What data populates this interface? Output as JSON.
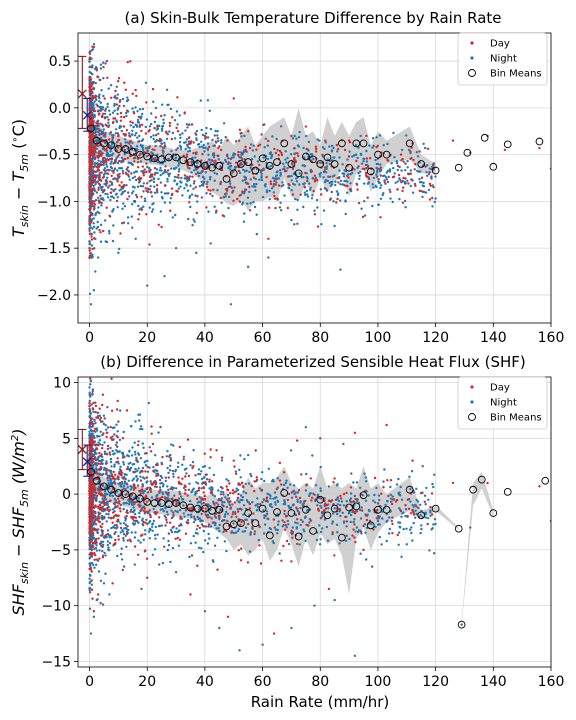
{
  "chart_data": [
    {
      "type": "scatter",
      "title": "(a) Skin-Bulk Temperature Difference by Rain Rate",
      "ylabel_base": "T",
      "ylabel_sub1": "skin",
      "ylabel_mid": " − T",
      "ylabel_sub2": "5m",
      "ylabel_tail": " (",
      "ylabel_deg": "∘",
      "ylabel_unit": "C)",
      "xlim": [
        -4,
        160
      ],
      "ylim": [
        -2.3,
        0.8
      ],
      "xticks": [
        "0",
        "20",
        "40",
        "60",
        "80",
        "100",
        "120",
        "140",
        "160"
      ],
      "yticks": [
        "−2.0",
        "−1.5",
        "−1.0",
        "−0.5",
        "0.0",
        "0.5"
      ],
      "xtick_values": [
        0,
        20,
        40,
        60,
        80,
        100,
        120,
        140,
        160
      ],
      "ytick_values": [
        -2.0,
        -1.5,
        -1.0,
        -0.5,
        0.0,
        0.5
      ],
      "grid": true,
      "legend_position": "top-right",
      "legend": [
        "Day",
        "Night",
        "Bin Means"
      ],
      "colors": {
        "day": "#d62728",
        "night": "#1f77b4",
        "band": "#c8c8c8"
      },
      "scatter_model": {
        "center": -0.45,
        "spread_near0": 0.38,
        "spread_far": 0.22,
        "seed": 11
      },
      "summary_markers": [
        {
          "name": "Day",
          "x": -2.5,
          "mean": 0.15,
          "low": -0.22,
          "high": 0.55
        },
        {
          "name": "Night",
          "x": -0.8,
          "mean": -0.08,
          "low": -0.25,
          "high": 0.1
        }
      ],
      "bin_means": {
        "x": [
          0.5,
          2.5,
          5,
          7.5,
          10,
          12.5,
          15,
          17.5,
          20,
          22.5,
          25,
          27.5,
          30,
          32.5,
          35,
          37.5,
          40,
          42.5,
          45,
          47.5,
          50,
          52.5,
          55,
          57.5,
          60,
          62.5,
          65,
          67.5,
          70,
          72.5,
          75,
          77.5,
          80,
          82.5,
          85,
          87.5,
          90,
          92.5,
          95,
          97.5,
          100,
          103,
          111,
          115,
          120,
          128,
          131,
          137,
          140,
          145,
          156
        ],
        "y": [
          -0.22,
          -0.35,
          -0.38,
          -0.4,
          -0.44,
          -0.44,
          -0.47,
          -0.5,
          -0.52,
          -0.54,
          -0.55,
          -0.53,
          -0.53,
          -0.56,
          -0.58,
          -0.6,
          -0.62,
          -0.64,
          -0.62,
          -0.76,
          -0.7,
          -0.6,
          -0.58,
          -0.67,
          -0.54,
          -0.62,
          -0.58,
          -0.38,
          -0.6,
          -0.7,
          -0.52,
          -0.55,
          -0.6,
          -0.53,
          -0.6,
          -0.38,
          -0.64,
          -0.38,
          -0.38,
          -0.68,
          -0.5,
          -0.5,
          -0.38,
          -0.6,
          -0.67,
          -0.64,
          -0.48,
          -0.32,
          -0.63,
          -0.39,
          -0.36
        ]
      },
      "band": {
        "x": [
          0,
          5,
          10,
          15,
          20,
          25,
          30,
          35,
          40,
          42.5,
          45,
          47.5,
          50,
          52.5,
          55,
          57.5,
          60,
          62.5,
          65,
          67.5,
          70,
          72.5,
          75,
          77.5,
          80,
          82.5,
          85,
          87.5,
          90,
          92.5,
          95,
          97.5,
          100,
          103,
          111,
          115,
          120
        ],
        "low": [
          -0.4,
          -0.5,
          -0.54,
          -0.58,
          -0.6,
          -0.62,
          -0.64,
          -0.7,
          -0.8,
          -0.9,
          -0.95,
          -1.02,
          -1.05,
          -0.98,
          -1.1,
          -1.0,
          -1.0,
          -0.95,
          -1.0,
          -0.75,
          -0.95,
          -1.0,
          -0.8,
          -0.95,
          -0.75,
          -0.9,
          -0.8,
          -0.65,
          -0.95,
          -0.7,
          -0.65,
          -0.9,
          -0.75,
          -0.6,
          -0.55,
          -0.7,
          -0.7
        ],
        "high": [
          -0.05,
          -0.25,
          -0.3,
          -0.35,
          -0.4,
          -0.4,
          -0.45,
          -0.45,
          -0.4,
          -0.35,
          -0.45,
          -0.3,
          -0.4,
          -0.3,
          -0.2,
          -0.4,
          -0.3,
          -0.2,
          -0.15,
          -0.1,
          -0.3,
          0.0,
          -0.3,
          -0.25,
          -0.4,
          -0.1,
          -0.3,
          -0.15,
          -0.3,
          -0.15,
          -0.1,
          -0.4,
          -0.25,
          -0.35,
          -0.2,
          -0.5,
          -0.6
        ]
      },
      "outliers_day": [
        [
          1.5,
          0.65
        ],
        [
          2.5,
          0.4
        ],
        [
          3.5,
          0.3
        ],
        [
          6,
          0.5
        ],
        [
          9,
          0.18
        ],
        [
          12,
          -0.1
        ],
        [
          15,
          0.15
        ],
        [
          18,
          -0.95
        ],
        [
          22,
          0.2
        ],
        [
          24,
          -1.25
        ],
        [
          28,
          -1.1
        ],
        [
          33,
          -0.05
        ],
        [
          40,
          -0.3
        ],
        [
          44,
          -1.1
        ],
        [
          50,
          0.1
        ],
        [
          55,
          -0.25
        ],
        [
          62,
          -1.4
        ],
        [
          70,
          -0.3
        ],
        [
          75,
          -0.2
        ],
        [
          84,
          -0.9
        ],
        [
          90,
          -0.35
        ],
        [
          96,
          -0.3
        ],
        [
          108,
          -0.5
        ],
        [
          112,
          -0.38
        ],
        [
          126,
          -0.35
        ],
        [
          138,
          -0.3
        ],
        [
          144,
          -0.45
        ],
        [
          156,
          -0.43
        ]
      ],
      "outliers_night": [
        [
          0.5,
          -2.1
        ],
        [
          1.5,
          -1.95
        ],
        [
          2,
          -1.75
        ],
        [
          3,
          -1.6
        ],
        [
          4,
          -1.25
        ],
        [
          8,
          -1.1
        ],
        [
          10,
          -1.55
        ],
        [
          16,
          -1.4
        ],
        [
          20,
          -1.9
        ],
        [
          26,
          -1.8
        ],
        [
          30,
          -1.5
        ],
        [
          37,
          -1.55
        ],
        [
          42,
          -1.45
        ],
        [
          49,
          -2.1
        ],
        [
          55,
          -1.7
        ],
        [
          58,
          -1.35
        ],
        [
          62,
          -1.6
        ],
        [
          70,
          -1.2
        ],
        [
          78,
          -1.1
        ],
        [
          87,
          -1.73
        ],
        [
          94,
          -0.3
        ],
        [
          100,
          -0.6
        ],
        [
          102,
          -0.4
        ],
        [
          118,
          -0.65
        ],
        [
          132,
          -0.48
        ],
        [
          160,
          -0.65
        ]
      ]
    },
    {
      "type": "scatter",
      "title": "(b) Difference in Parameterized Sensible Heat Flux (SHF)",
      "xlabel": "Rain Rate (mm/hr)",
      "ylabel_base": "SHF",
      "ylabel_sub1": "skin",
      "ylabel_mid": " − SHF",
      "ylabel_sub2": "5m",
      "ylabel_tail": " (W/m",
      "ylabel_sup": "2",
      "ylabel_close": ")",
      "xlim": [
        -4,
        160
      ],
      "ylim": [
        -15.5,
        10.5
      ],
      "xticks": [
        "0",
        "20",
        "40",
        "60",
        "80",
        "100",
        "120",
        "140",
        "160"
      ],
      "yticks": [
        "−15",
        "−10",
        "−5",
        "0",
        "5",
        "10"
      ],
      "xtick_values": [
        0,
        20,
        40,
        60,
        80,
        100,
        120,
        140,
        160
      ],
      "ytick_values": [
        -15,
        -10,
        -5,
        0,
        5,
        10
      ],
      "grid": true,
      "legend_position": "top-right",
      "legend": [
        "Day",
        "Night",
        "Bin Means"
      ],
      "colors": {
        "day": "#d62728",
        "night": "#1f77b4",
        "band": "#c8c8c8"
      },
      "scatter_model": {
        "center": 0.4,
        "spread_near0": 3.0,
        "spread_far": 1.8,
        "seed": 23
      },
      "summary_markers": [
        {
          "name": "Day",
          "x": -2.5,
          "mean": 4.0,
          "low": 2.2,
          "high": 5.8
        },
        {
          "name": "Night",
          "x": -0.8,
          "mean": 2.9,
          "low": 1.6,
          "high": 4.4
        }
      ],
      "bin_means": {
        "x": [
          0.5,
          2.5,
          5,
          7.5,
          10,
          12.5,
          15,
          17.5,
          20,
          22.5,
          25,
          27.5,
          30,
          32.5,
          35,
          37.5,
          40,
          42.5,
          45,
          47.5,
          50,
          52.5,
          55,
          57.5,
          60,
          62.5,
          65,
          67.5,
          70,
          72.5,
          75,
          77.5,
          80,
          82.5,
          85,
          87.5,
          90,
          92.5,
          95,
          97.5,
          100,
          103,
          111,
          115,
          120,
          128,
          129,
          133,
          136,
          140,
          145,
          158
        ],
        "y": [
          2.0,
          1.2,
          0.7,
          0.4,
          0.1,
          0.0,
          -0.2,
          -0.4,
          -0.7,
          -0.8,
          -0.8,
          -0.9,
          -0.8,
          -1.0,
          -1.2,
          -1.3,
          -1.3,
          -1.5,
          -1.4,
          -2.9,
          -2.7,
          -2.6,
          -1.7,
          -2.6,
          -1.3,
          -3.7,
          -1.6,
          0.1,
          -1.7,
          -3.8,
          -1.4,
          -3.3,
          -0.5,
          -1.9,
          -1.3,
          -3.9,
          -1.2,
          -1.1,
          -0.1,
          -2.8,
          -1.4,
          -1.4,
          0.4,
          -1.9,
          -1.3,
          -3.1,
          -11.7,
          0.4,
          1.3,
          -1.7,
          0.2,
          1.2
        ]
      },
      "band": {
        "x": [
          0,
          5,
          10,
          15,
          20,
          25,
          30,
          35,
          40,
          42.5,
          45,
          47.5,
          50,
          52.5,
          55,
          57.5,
          60,
          62.5,
          65,
          67.5,
          70,
          72.5,
          75,
          77.5,
          80,
          82.5,
          85,
          87.5,
          90,
          92.5,
          95,
          97.5,
          100,
          103,
          111,
          115,
          120,
          128,
          129,
          133,
          136,
          140
        ],
        "low": [
          0.5,
          -0.5,
          -1.0,
          -1.3,
          -1.6,
          -1.8,
          -2.0,
          -2.2,
          -2.5,
          -3.0,
          -3.5,
          -4.0,
          -5.0,
          -4.5,
          -5.5,
          -5.0,
          -4.0,
          -6.0,
          -5.0,
          -3.0,
          -4.5,
          -6.5,
          -4.0,
          -5.5,
          -3.5,
          -4.5,
          -4.0,
          -5.5,
          -9.0,
          -4.0,
          -3.0,
          -5.0,
          -3.5,
          -2.5,
          -1.5,
          -2.3,
          -1.5,
          -3.2,
          -11.8,
          -1.0,
          0.5,
          -2.0
        ],
        "high": [
          3.5,
          1.5,
          1.0,
          0.8,
          0.5,
          0.3,
          0.3,
          0.0,
          -0.2,
          0.0,
          -0.5,
          0.2,
          -1.0,
          0.0,
          1.5,
          0.5,
          1.0,
          1.0,
          1.5,
          2.5,
          1.0,
          0.5,
          1.0,
          0.5,
          2.5,
          0.5,
          1.0,
          0.5,
          1.0,
          0.5,
          2.5,
          0.5,
          1.0,
          0.0,
          1.5,
          -1.5,
          -1.0,
          -3.0,
          -11.5,
          1.0,
          2.0,
          -1.5
        ]
      },
      "outliers_day": [
        [
          1,
          9.0
        ],
        [
          2,
          8.2
        ],
        [
          3,
          7.0
        ],
        [
          4,
          6.5
        ],
        [
          6,
          5.5
        ],
        [
          10,
          6.5
        ],
        [
          13,
          7.5
        ],
        [
          22,
          4.5
        ],
        [
          28,
          3.5
        ],
        [
          36,
          2.5
        ],
        [
          42,
          4.0
        ],
        [
          50,
          3.0
        ],
        [
          58,
          1.5
        ],
        [
          66,
          2.8
        ],
        [
          72,
          4.8
        ],
        [
          80,
          5.0
        ],
        [
          92,
          5.5
        ],
        [
          103,
          6.2
        ],
        [
          112,
          3.0
        ],
        [
          126,
          1.0
        ],
        [
          138,
          1.0
        ],
        [
          156,
          0.7
        ],
        [
          1.5,
          -10.5
        ],
        [
          3,
          -9.0
        ],
        [
          8,
          -8.0
        ],
        [
          20,
          -7.5
        ],
        [
          35,
          -9.0
        ],
        [
          48,
          -11.0
        ],
        [
          64,
          -12.5
        ],
        [
          83,
          -8.5
        ],
        [
          95,
          -5.0
        ],
        [
          105,
          -3.5
        ]
      ],
      "outliers_night": [
        [
          0.5,
          -12.5
        ],
        [
          1.5,
          -11.0
        ],
        [
          2.5,
          -9.5
        ],
        [
          5,
          -8.0
        ],
        [
          12,
          -6.5
        ],
        [
          18,
          -8.5
        ],
        [
          30,
          -7.0
        ],
        [
          40,
          -10.5
        ],
        [
          45,
          -12.0
        ],
        [
          52,
          -14.0
        ],
        [
          60,
          -13.5
        ],
        [
          70,
          -12.0
        ],
        [
          78,
          -10.0
        ],
        [
          85,
          -9.5
        ],
        [
          92,
          -14.5
        ],
        [
          98,
          -6.5
        ],
        [
          110,
          -4.5
        ],
        [
          129,
          -11.7
        ],
        [
          132,
          -3.0
        ],
        [
          160,
          -2.4
        ],
        [
          55,
          3.5
        ],
        [
          75,
          6.0
        ],
        [
          88,
          4.5
        ],
        [
          40,
          2.5
        ],
        [
          25,
          2.8
        ]
      ]
    }
  ]
}
